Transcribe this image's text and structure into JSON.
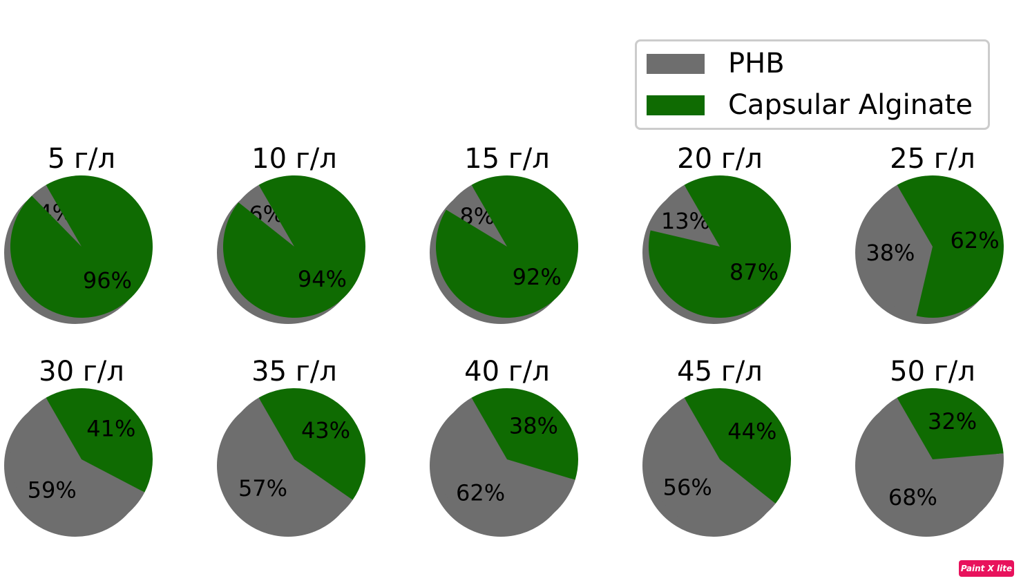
{
  "colors": {
    "phb": "#6e6e6e",
    "alginate": "#0f6b02",
    "shadow": "#555555"
  },
  "legend": {
    "placement": "top-right",
    "items": [
      {
        "label": "PHB",
        "color": "#6e6e6e"
      },
      {
        "label": "Capsular Alginate",
        "color": "#0f6b02"
      }
    ]
  },
  "badge": {
    "text": "Paint X lite"
  },
  "chart_data": {
    "type": "pie",
    "series_names": [
      "PHB",
      "Capsular Alginate"
    ],
    "charts": [
      {
        "title": "5 г/л",
        "values": [
          4,
          96
        ],
        "labels": [
          "4%",
          "96%"
        ]
      },
      {
        "title": "10 г/л",
        "values": [
          6,
          94
        ],
        "labels": [
          "6%",
          "94%"
        ]
      },
      {
        "title": "15 г/л",
        "values": [
          8,
          92
        ],
        "labels": [
          "8%",
          "92%"
        ]
      },
      {
        "title": "20 г/л",
        "values": [
          13,
          87
        ],
        "labels": [
          "13%",
          "87%"
        ]
      },
      {
        "title": "25 г/л",
        "values": [
          38,
          62
        ],
        "labels": [
          "38%",
          "62%"
        ]
      },
      {
        "title": "30 г/л",
        "values": [
          59,
          41
        ],
        "labels": [
          "59%",
          "41%"
        ]
      },
      {
        "title": "35 г/л",
        "values": [
          57,
          43
        ],
        "labels": [
          "57%",
          "43%"
        ]
      },
      {
        "title": "40 г/л",
        "values": [
          62,
          38
        ],
        "labels": [
          "62%",
          "38%"
        ]
      },
      {
        "title": "45 г/л",
        "values": [
          56,
          44
        ],
        "labels": [
          "56%",
          "44%"
        ]
      },
      {
        "title": "50 г/л",
        "values": [
          68,
          32
        ],
        "labels": [
          "68%",
          "32%"
        ]
      }
    ]
  }
}
